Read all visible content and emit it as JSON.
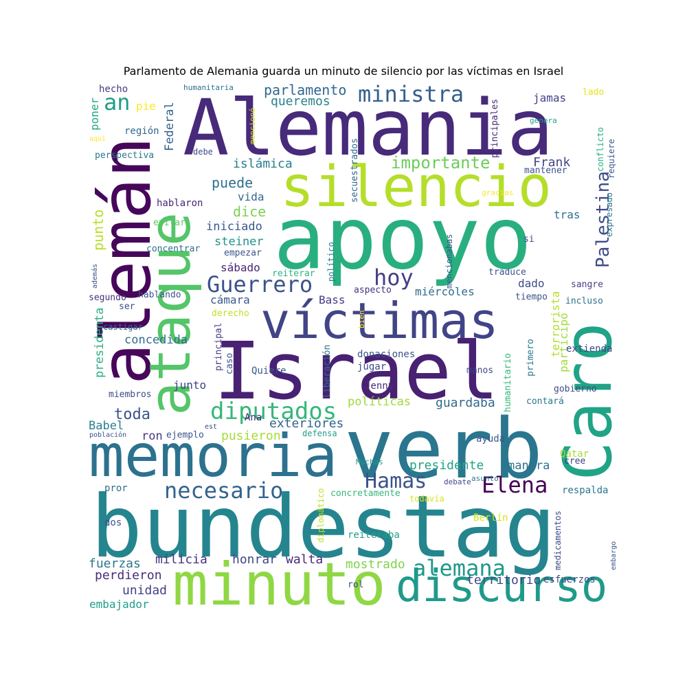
{
  "title": "Parlamento de Alemania guarda un minuto de silencio por las víctimas en Israel",
  "palette": "viridis",
  "chart_data": {
    "type": "wordcloud",
    "words": [
      {
        "text": "Alemania",
        "color": "#472a7a",
        "weight": 1.0
      },
      {
        "text": "Israel",
        "color": "#482173",
        "weight": 1.0
      },
      {
        "text": "apoyo",
        "color": "#29af7f",
        "weight": 0.95
      },
      {
        "text": "bundestag",
        "color": "#25858e",
        "weight": 0.95
      },
      {
        "text": "verb",
        "color": "#2a768e",
        "weight": 0.9
      },
      {
        "text": "alemán",
        "color": "#46075a",
        "weight": 0.85
      },
      {
        "text": "silencio",
        "color": "#b5de2b",
        "weight": 0.8
      },
      {
        "text": "ataque",
        "color": "#54c568",
        "weight": 0.8
      },
      {
        "text": "Caro",
        "color": "#20a386",
        "weight": 0.8
      },
      {
        "text": "memoria",
        "color": "#2c728e",
        "weight": 0.75
      },
      {
        "text": "minuto",
        "color": "#8fd744",
        "weight": 0.75
      },
      {
        "text": "víctimas",
        "color": "#414487",
        "weight": 0.7
      },
      {
        "text": "discurso",
        "color": "#1f9a8a",
        "weight": 0.7
      },
      {
        "text": "ministra",
        "color": "#355f8d",
        "weight": 0.5
      },
      {
        "text": "Guerrero",
        "color": "#3b528b",
        "weight": 0.45
      },
      {
        "text": "hoy",
        "color": "#433e85",
        "weight": 0.45
      },
      {
        "text": "diputados",
        "color": "#35b779",
        "weight": 0.45
      },
      {
        "text": "alemana",
        "color": "#1f988b",
        "weight": 0.45
      },
      {
        "text": "necesario",
        "color": "#33638d",
        "weight": 0.4
      },
      {
        "text": "Hamas",
        "color": "#3b528b",
        "weight": 0.4
      },
      {
        "text": "Elena",
        "color": "#440154",
        "weight": 0.4
      },
      {
        "text": "Palestina",
        "color": "#3e4a89",
        "weight": 0.35
      },
      {
        "text": "an",
        "color": "#1f9e89",
        "weight": 0.35
      },
      {
        "text": "importante",
        "color": "#6ccd5a",
        "weight": 0.3
      },
      {
        "text": "parlamento",
        "color": "#31688e",
        "weight": 0.3
      },
      {
        "text": "puede",
        "color": "#2d708e",
        "weight": 0.3
      },
      {
        "text": "dice",
        "color": "#7ad151",
        "weight": 0.3
      },
      {
        "text": "punto",
        "color": "#b8de29",
        "weight": 0.3
      },
      {
        "text": "toda",
        "color": "#3b528b",
        "weight": 0.3
      },
      {
        "text": "presidente",
        "color": "#20a386",
        "weight": 0.25
      },
      {
        "text": "Frank",
        "color": "#404688",
        "weight": 0.25
      },
      {
        "text": "queremos",
        "color": "#26828e",
        "weight": 0.25
      },
      {
        "text": "islámica",
        "color": "#287d8e",
        "weight": 0.25
      },
      {
        "text": "territorio",
        "color": "#3f4788",
        "weight": 0.25
      },
      {
        "text": "mostrado",
        "color": "#7fd34e",
        "weight": 0.25
      },
      {
        "text": "unidad",
        "color": "#433e85",
        "weight": 0.25
      },
      {
        "text": "guardaba",
        "color": "#31688e",
        "weight": 0.25
      },
      {
        "text": "exteriores",
        "color": "#33638d",
        "weight": 0.25
      },
      {
        "text": "pusieron",
        "color": "#a5db36",
        "weight": 0.25
      },
      {
        "text": "perdieron",
        "color": "#472d7b",
        "weight": 0.25
      },
      {
        "text": "fuerzas",
        "color": "#2a788e",
        "weight": 0.25
      },
      {
        "text": "milicia",
        "color": "#46327e",
        "weight": 0.25
      },
      {
        "text": "honrar",
        "color": "#3e4989",
        "weight": 0.25
      },
      {
        "text": "walta",
        "color": "#482878",
        "weight": 0.25
      },
      {
        "text": "concedida",
        "color": "#2f6c8e",
        "weight": 0.25
      },
      {
        "text": "iniciado",
        "color": "#38598c",
        "weight": 0.25
      },
      {
        "text": "steiner",
        "color": "#21918c",
        "weight": 0.25
      },
      {
        "text": "Federal",
        "color": "#34618d",
        "weight": 0.25
      },
      {
        "text": "presidenta",
        "color": "#29af7f",
        "weight": 0.2
      },
      {
        "text": "políticas",
        "color": "#9fda3a",
        "weight": 0.2
      },
      {
        "text": "embajador",
        "color": "#1f9e89",
        "weight": 0.2
      },
      {
        "text": "manera",
        "color": "#2c738e",
        "weight": 0.2
      },
      {
        "text": "respalda",
        "color": "#2a768e",
        "weight": 0.2
      },
      {
        "text": "Babel",
        "color": "#27808e",
        "weight": 0.2
      },
      {
        "text": "ron",
        "color": "#453882",
        "weight": 0.2
      },
      {
        "text": "jamas",
        "color": "#433e85",
        "weight": 0.2
      },
      {
        "text": "vida",
        "color": "#31688e",
        "weight": 0.2
      },
      {
        "text": "cámara",
        "color": "#38598c",
        "weight": 0.2
      },
      {
        "text": "sábado",
        "color": "#482576",
        "weight": 0.2
      },
      {
        "text": "dado",
        "color": "#3e4a89",
        "weight": 0.2
      },
      {
        "text": "miércoles",
        "color": "#2f6c8e",
        "weight": 0.2
      },
      {
        "text": "tras",
        "color": "#2c728e",
        "weight": 0.2
      },
      {
        "text": "poner",
        "color": "#22a785",
        "weight": 0.2
      },
      {
        "text": "pie",
        "color": "#fde725",
        "weight": 0.2
      },
      {
        "text": "terrorista",
        "color": "#b5de2b",
        "weight": 0.2
      },
      {
        "text": "participó",
        "color": "#a0da39",
        "weight": 0.2
      },
      {
        "text": "junto",
        "color": "#414487",
        "weight": 0.2
      },
      {
        "text": "Bass",
        "color": "#453882",
        "weight": 0.18
      },
      {
        "text": "Ana",
        "color": "#472a7a",
        "weight": 0.15
      },
      {
        "text": "dos",
        "color": "#3b528b",
        "weight": 0.15
      },
      {
        "text": "pror",
        "color": "#2f6c8e",
        "weight": 0.15
      },
      {
        "text": "esfuerzos",
        "color": "#3e4989",
        "weight": 0.15
      },
      {
        "text": "reiteraba",
        "color": "#1f9e89",
        "weight": 0.15
      },
      {
        "text": "Berlín",
        "color": "#d2e21b",
        "weight": 0.15
      },
      {
        "text": "hecho",
        "color": "#433e85",
        "weight": 0.15
      },
      {
        "text": "región",
        "color": "#31688e",
        "weight": 0.15
      },
      {
        "text": "perspectiva",
        "color": "#2a788e",
        "weight": 0.15
      },
      {
        "text": "debe",
        "color": "#3e4a89",
        "weight": 0.15
      },
      {
        "text": "mantener",
        "color": "#3b528b",
        "weight": 0.15
      },
      {
        "text": "conflicto",
        "color": "#28ae80",
        "weight": 0.15
      },
      {
        "text": "requiere",
        "color": "#38598c",
        "weight": 0.15
      },
      {
        "text": "expresado",
        "color": "#2a768e",
        "weight": 0.15
      },
      {
        "text": "hablaron",
        "color": "#482475",
        "weight": 0.15
      },
      {
        "text": "evitar",
        "color": "#5ec962",
        "weight": 0.15
      },
      {
        "text": "concentrar",
        "color": "#2e6e8e",
        "weight": 0.15
      },
      {
        "text": "empezar",
        "color": "#3b528b",
        "weight": 0.15
      },
      {
        "text": "reiterar",
        "color": "#2db27d",
        "weight": 0.15
      },
      {
        "text": "traduce",
        "color": "#3a548c",
        "weight": 0.15
      },
      {
        "text": "aspecto",
        "color": "#46327e",
        "weight": 0.15
      },
      {
        "text": "tiempo",
        "color": "#3b528b",
        "weight": 0.15
      },
      {
        "text": "incluso",
        "color": "#2d708e",
        "weight": 0.15
      },
      {
        "text": "sangre",
        "color": "#433e85",
        "weight": 0.15
      },
      {
        "text": "extienda",
        "color": "#3e4989",
        "weight": 0.15
      },
      {
        "text": "primero",
        "color": "#2a788e",
        "weight": 0.15
      },
      {
        "text": "humanitario",
        "color": "#35b779",
        "weight": 0.15
      },
      {
        "text": "donaciones",
        "color": "#3b528b",
        "weight": 0.15
      },
      {
        "text": "jugar",
        "color": "#3e4a89",
        "weight": 0.15
      },
      {
        "text": "Jenny",
        "color": "#472d7b",
        "weight": 0.15
      },
      {
        "text": "manos",
        "color": "#414487",
        "weight": 0.15
      },
      {
        "text": "gobierno",
        "color": "#3e4a89",
        "weight": 0.15
      },
      {
        "text": "contará",
        "color": "#2a788e",
        "weight": 0.15
      },
      {
        "text": "Quiere",
        "color": "#38598c",
        "weight": 0.15
      },
      {
        "text": "liberación",
        "color": "#2c728e",
        "weight": 0.15
      },
      {
        "text": "caso",
        "color": "#3b528b",
        "weight": 0.15
      },
      {
        "text": "principal",
        "color": "#433e85",
        "weight": 0.15
      },
      {
        "text": "miembros",
        "color": "#3e4a89",
        "weight": 0.15
      },
      {
        "text": "ejemplo",
        "color": "#3b528b",
        "weight": 0.15
      },
      {
        "text": "defensa",
        "color": "#1f9e89",
        "weight": 0.15
      },
      {
        "text": "ayuda",
        "color": "#38598c",
        "weight": 0.15
      },
      {
        "text": "Qatar",
        "color": "#a5db36",
        "weight": 0.15
      },
      {
        "text": "cree",
        "color": "#433e85",
        "weight": 0.15
      },
      {
        "text": "concretamente",
        "color": "#35b779",
        "weight": 0.12
      },
      {
        "text": "diplomático",
        "color": "#bddf26",
        "weight": 0.12
      },
      {
        "text": "medicamentos",
        "color": "#3e4989",
        "weight": 0.12
      },
      {
        "text": "embargo",
        "color": "#3b528b",
        "weight": 0.1
      },
      {
        "text": "segundo",
        "color": "#46327e",
        "weight": 0.15
      },
      {
        "text": "hablando",
        "color": "#3b528b",
        "weight": 0.15
      },
      {
        "text": "ser",
        "color": "#3e4a89",
        "weight": 0.15
      },
      {
        "text": "castigar",
        "color": "#2d708e",
        "weight": 0.12
      },
      {
        "text": "derecho",
        "color": "#c2df23",
        "weight": 0.15
      },
      {
        "text": "además",
        "color": "#3b528b",
        "weight": 0.1
      },
      {
        "text": "político",
        "color": "#2a788e",
        "weight": 0.15
      },
      {
        "text": "mencionabas",
        "color": "#38598c",
        "weight": 0.15
      },
      {
        "text": "bien",
        "color": "#fde725",
        "weight": 0.1
      },
      {
        "text": "secuestrados",
        "color": "#31688e",
        "weight": 0.15
      },
      {
        "text": "principales",
        "color": "#472a7a",
        "weight": 0.15
      },
      {
        "text": "mencionó",
        "color": "#d8e219",
        "weight": 0.12
      },
      {
        "text": "humanitaria",
        "color": "#2d708e",
        "weight": 0.1
      },
      {
        "text": "lado",
        "color": "#e5e419",
        "weight": 0.12
      },
      {
        "text": "genera",
        "color": "#1f9e89",
        "weight": 0.1
      },
      {
        "text": "gracias",
        "color": "#fde725",
        "weight": 0.1
      },
      {
        "text": "si",
        "color": "#3e4a89",
        "weight": 0.12
      },
      {
        "text": "aquí",
        "color": "#fde725",
        "weight": 0.1
      },
      {
        "text": "población",
        "color": "#3b528b",
        "weight": 0.1
      },
      {
        "text": "est",
        "color": "#3e4989",
        "weight": 0.1
      },
      {
        "text": "Muchas",
        "color": "#1f9e89",
        "weight": 0.1
      },
      {
        "text": "todavía",
        "color": "#d8e219",
        "weight": 0.1
      },
      {
        "text": "debate",
        "color": "#3e4a89",
        "weight": 0.1
      },
      {
        "text": "asunto",
        "color": "#2a788e",
        "weight": 0.1
      },
      {
        "text": "rol",
        "color": "#3e4a89",
        "weight": 0.12
      }
    ]
  }
}
